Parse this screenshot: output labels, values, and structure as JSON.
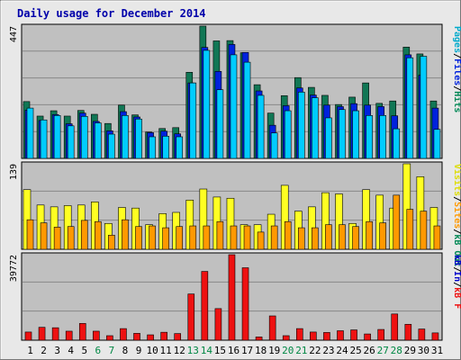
{
  "title": "Daily usage for December 2014",
  "colors": {
    "title": "#0000aa",
    "plot_bg": "#c0c0c0",
    "page_bg": "#e8e8e8",
    "pages_front": "#00ccff",
    "files_mid": "#0022dd",
    "hits_back": "#117755",
    "sites_front": "#ff9900",
    "visits_back": "#ffff22",
    "kbf": "#ee1111",
    "kbin": "#0000cc",
    "kbout": "#006600",
    "day_normal": "#000000",
    "day_weekend": "#008844",
    "grid": "#888888"
  },
  "chart_data": [
    {
      "type": "bar",
      "panel": "top",
      "ymax_label": "447",
      "ylim": [
        0,
        447
      ],
      "categories": [
        "1",
        "2",
        "3",
        "4",
        "5",
        "6",
        "7",
        "8",
        "9",
        "10",
        "11",
        "12",
        "13",
        "14",
        "15",
        "16",
        "17",
        "18",
        "19",
        "20",
        "21",
        "22",
        "23",
        "24",
        "25",
        "26",
        "27",
        "28",
        "29",
        "30",
        "31"
      ],
      "weekend_days": [
        "6",
        "7",
        "13",
        "14",
        "20",
        "21",
        "27",
        "28"
      ],
      "legend": [
        {
          "text": "Pages",
          "color": "#00aacc"
        },
        {
          "text": "/",
          "color": "#000000"
        },
        {
          "text": "Files",
          "color": "#0022dd"
        },
        {
          "text": "/",
          "color": "#000000"
        },
        {
          "text": "Hits",
          "color": "#008855"
        }
      ],
      "series": [
        {
          "name": "Hits",
          "values": [
            192,
            143,
            161,
            143,
            162,
            149,
            118,
            180,
            147,
            89,
            101,
            104,
            291,
            447,
            397,
            398,
            357,
            249,
            153,
            212,
            273,
            240,
            213,
            182,
            207,
            255,
            186,
            194,
            376,
            353,
            194
          ]
        },
        {
          "name": "Files",
          "values": [
            163,
            128,
            148,
            117,
            153,
            125,
            93,
            158,
            140,
            87,
            92,
            83,
            255,
            375,
            294,
            385,
            358,
            228,
            112,
            178,
            238,
            214,
            180,
            175,
            185,
            180,
            175,
            144,
            350,
            281,
            170
          ]
        },
        {
          "name": "Pages",
          "values": [
            170,
            130,
            145,
            110,
            142,
            120,
            82,
            145,
            133,
            73,
            75,
            73,
            255,
            365,
            232,
            350,
            325,
            213,
            86,
            161,
            224,
            205,
            137,
            165,
            161,
            145,
            145,
            100,
            340,
            345,
            98
          ]
        }
      ]
    },
    {
      "type": "bar",
      "panel": "middle",
      "ymax_label": "139",
      "ylim": [
        0,
        139
      ],
      "legend": [
        {
          "text": "Visits",
          "color": "#dddd00"
        },
        {
          "text": "/",
          "color": "#000000"
        },
        {
          "text": "Sites",
          "color": "#ff9900"
        },
        {
          "text": "/",
          "color": "#000000"
        },
        {
          "text": "kB Out",
          "color": "#008855"
        },
        {
          "text": "/",
          "color": "#000000"
        }
      ],
      "series": [
        {
          "name": "Visits",
          "values": [
            97,
            72,
            69,
            71,
            72,
            77,
            42,
            68,
            67,
            40,
            58,
            60,
            80,
            98,
            85,
            83,
            40,
            40,
            57,
            104,
            62,
            69,
            92,
            90,
            42,
            97,
            88,
            67,
            139,
            118,
            68
          ]
        },
        {
          "name": "Sites",
          "values": [
            48,
            43,
            36,
            37,
            47,
            45,
            23,
            48,
            37,
            38,
            35,
            37,
            38,
            38,
            45,
            38,
            38,
            28,
            38,
            45,
            35,
            35,
            40,
            40,
            37,
            45,
            43,
            88,
            65,
            62,
            38
          ]
        }
      ]
    },
    {
      "type": "bar",
      "panel": "bottom",
      "ymax_label": "39772",
      "ylim": [
        0,
        39772
      ],
      "legend": [
        {
          "text": "kB In",
          "color": "#0000cc"
        },
        {
          "text": "/",
          "color": "#000000"
        },
        {
          "text": "kB F",
          "color": "#ee1111"
        }
      ],
      "series": [
        {
          "name": "kB F",
          "values": [
            3800,
            6000,
            5800,
            4200,
            7800,
            4200,
            2100,
            5400,
            3200,
            2500,
            3700,
            3100,
            21500,
            32000,
            14700,
            39772,
            33700,
            1500,
            11300,
            2100,
            5400,
            3800,
            3600,
            4400,
            4800,
            2900,
            5000,
            12200,
            7400,
            5200,
            3400
          ]
        }
      ]
    }
  ]
}
